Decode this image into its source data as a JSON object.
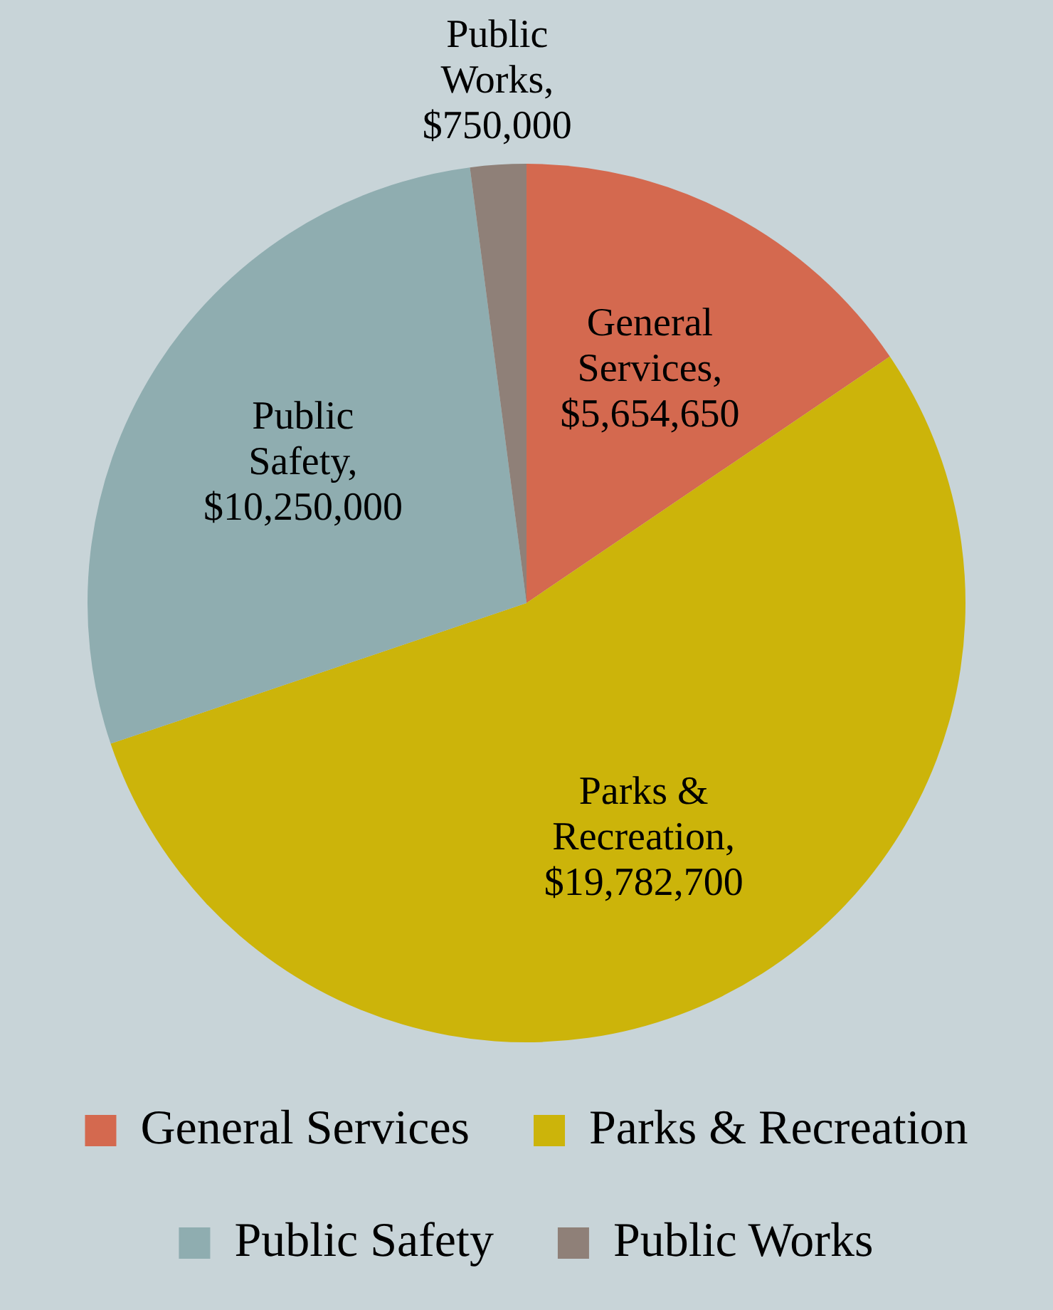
{
  "chart_data": {
    "type": "pie",
    "categories": [
      "General Services",
      "Parks & Recreation",
      "Public Safety",
      "Public Works"
    ],
    "values": [
      5654650,
      19782700,
      10250000,
      750000
    ],
    "value_labels": [
      "General Services, $5,654,650",
      "Parks & Recreation, $19,782,700",
      "Public Safety, $10,250,000",
      "Public Works, $750,000"
    ],
    "colors": [
      "#d4694f",
      "#ccb40a",
      "#8fadb0",
      "#8f8078"
    ],
    "legend": "bottom"
  }
}
